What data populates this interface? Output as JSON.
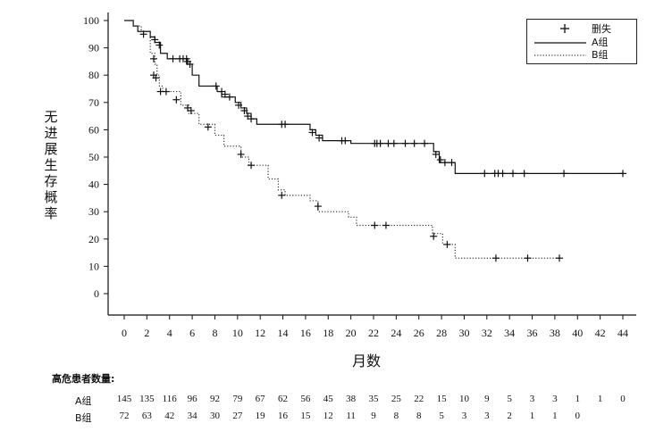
{
  "chart_data": {
    "type": "line",
    "ylabel": "无进展生存概率",
    "xlabel": "月数",
    "xlim": [
      0,
      44
    ],
    "ylim": [
      0,
      100
    ],
    "x_ticks": [
      0,
      2,
      4,
      6,
      8,
      10,
      12,
      14,
      16,
      18,
      20,
      22,
      24,
      26,
      28,
      30,
      32,
      34,
      36,
      38,
      40,
      42,
      44
    ],
    "y_ticks": [
      0,
      10,
      20,
      30,
      40,
      50,
      60,
      70,
      80,
      90,
      100
    ],
    "legend": {
      "position": "top-right",
      "entries": [
        {
          "label": "删失",
          "style": "plus"
        },
        {
          "label": "A组",
          "style": "solid"
        },
        {
          "label": "B组",
          "style": "dotted"
        }
      ]
    },
    "series": [
      {
        "name": "A组",
        "style": "solid",
        "steps": [
          [
            0,
            100
          ],
          [
            0.8,
            98
          ],
          [
            1.2,
            96
          ],
          [
            2.3,
            94
          ],
          [
            2.7,
            92
          ],
          [
            3.2,
            88
          ],
          [
            3.8,
            86
          ],
          [
            5.5,
            84
          ],
          [
            6,
            80
          ],
          [
            6.6,
            76
          ],
          [
            8.2,
            74
          ],
          [
            8.6,
            72
          ],
          [
            9.8,
            70
          ],
          [
            10.3,
            68
          ],
          [
            10.8,
            66
          ],
          [
            11.2,
            64
          ],
          [
            11.7,
            62
          ],
          [
            16.4,
            60
          ],
          [
            16.9,
            58
          ],
          [
            17.5,
            56
          ],
          [
            20,
            55
          ],
          [
            27.3,
            52
          ],
          [
            27.8,
            48
          ],
          [
            29.2,
            44
          ],
          [
            44,
            44
          ]
        ],
        "censored": [
          [
            1.7,
            95
          ],
          [
            2.7,
            93
          ],
          [
            3.1,
            91
          ],
          [
            4.3,
            86
          ],
          [
            4.9,
            86
          ],
          [
            5.2,
            86
          ],
          [
            5.5,
            86
          ],
          [
            5.6,
            85
          ],
          [
            5.8,
            84
          ],
          [
            8.1,
            76
          ],
          [
            8.6,
            74
          ],
          [
            8.9,
            73
          ],
          [
            9.3,
            72
          ],
          [
            10.1,
            69
          ],
          [
            10.6,
            67
          ],
          [
            10.9,
            65
          ],
          [
            11.2,
            64
          ],
          [
            13.9,
            62
          ],
          [
            14.2,
            62
          ],
          [
            16.6,
            59
          ],
          [
            17.2,
            57
          ],
          [
            19.2,
            56
          ],
          [
            19.5,
            56
          ],
          [
            22.1,
            55
          ],
          [
            22.3,
            55
          ],
          [
            22.6,
            55
          ],
          [
            23.3,
            55
          ],
          [
            23.8,
            55
          ],
          [
            24.8,
            55
          ],
          [
            25.6,
            55
          ],
          [
            26.5,
            55
          ],
          [
            27.5,
            51
          ],
          [
            27.9,
            49
          ],
          [
            28.3,
            48
          ],
          [
            28.9,
            48
          ],
          [
            31.8,
            44
          ],
          [
            32.7,
            44
          ],
          [
            33,
            44
          ],
          [
            33.4,
            44
          ],
          [
            34.3,
            44
          ],
          [
            35.3,
            44
          ],
          [
            38.8,
            44
          ],
          [
            44,
            44
          ]
        ]
      },
      {
        "name": "B组",
        "style": "dotted",
        "steps": [
          [
            0,
            100
          ],
          [
            0.8,
            98
          ],
          [
            1.5,
            96
          ],
          [
            2.3,
            88
          ],
          [
            2.7,
            84
          ],
          [
            2.9,
            80
          ],
          [
            3.1,
            76
          ],
          [
            3.4,
            74
          ],
          [
            5,
            69
          ],
          [
            5.7,
            66
          ],
          [
            6.6,
            62
          ],
          [
            8,
            58
          ],
          [
            8.8,
            54
          ],
          [
            10.3,
            50
          ],
          [
            11,
            47
          ],
          [
            12.7,
            42
          ],
          [
            13.6,
            38
          ],
          [
            14.2,
            36
          ],
          [
            16.4,
            34
          ],
          [
            17.1,
            30
          ],
          [
            19.8,
            28
          ],
          [
            20.5,
            25
          ],
          [
            27.2,
            22
          ],
          [
            28.1,
            18
          ],
          [
            29.2,
            13
          ],
          [
            38.4,
            13
          ]
        ],
        "censored": [
          [
            2.6,
            86
          ],
          [
            2.6,
            80
          ],
          [
            2.8,
            79
          ],
          [
            3.2,
            74
          ],
          [
            3.7,
            74
          ],
          [
            4.6,
            71
          ],
          [
            5.6,
            68
          ],
          [
            5.9,
            67
          ],
          [
            7.4,
            61
          ],
          [
            10.3,
            51
          ],
          [
            11.2,
            47
          ],
          [
            13.9,
            36
          ],
          [
            17.1,
            32
          ],
          [
            22.1,
            25
          ],
          [
            23.1,
            25
          ],
          [
            27.3,
            21
          ],
          [
            28.5,
            18
          ],
          [
            32.8,
            13
          ],
          [
            35.6,
            13
          ],
          [
            38.4,
            13
          ]
        ]
      }
    ]
  },
  "risk_table": {
    "title": "高危患者数量:",
    "times": [
      0,
      2,
      4,
      6,
      8,
      10,
      12,
      14,
      16,
      18,
      20,
      22,
      24,
      26,
      28,
      30,
      32,
      34,
      36,
      38,
      40,
      42,
      44
    ],
    "rows": [
      {
        "label": "A组",
        "values": [
          "145",
          "135",
          "116",
          "96",
          "92",
          "79",
          "67",
          "62",
          "56",
          "45",
          "38",
          "35",
          "25",
          "22",
          "15",
          "10",
          "9",
          "5",
          "3",
          "3",
          "1",
          "1",
          "0"
        ]
      },
      {
        "label": "B组",
        "values": [
          "72",
          "63",
          "42",
          "34",
          "30",
          "27",
          "19",
          "16",
          "15",
          "12",
          "11",
          "9",
          "8",
          "8",
          "5",
          "3",
          "3",
          "2",
          "1",
          "1",
          "0"
        ]
      }
    ]
  }
}
